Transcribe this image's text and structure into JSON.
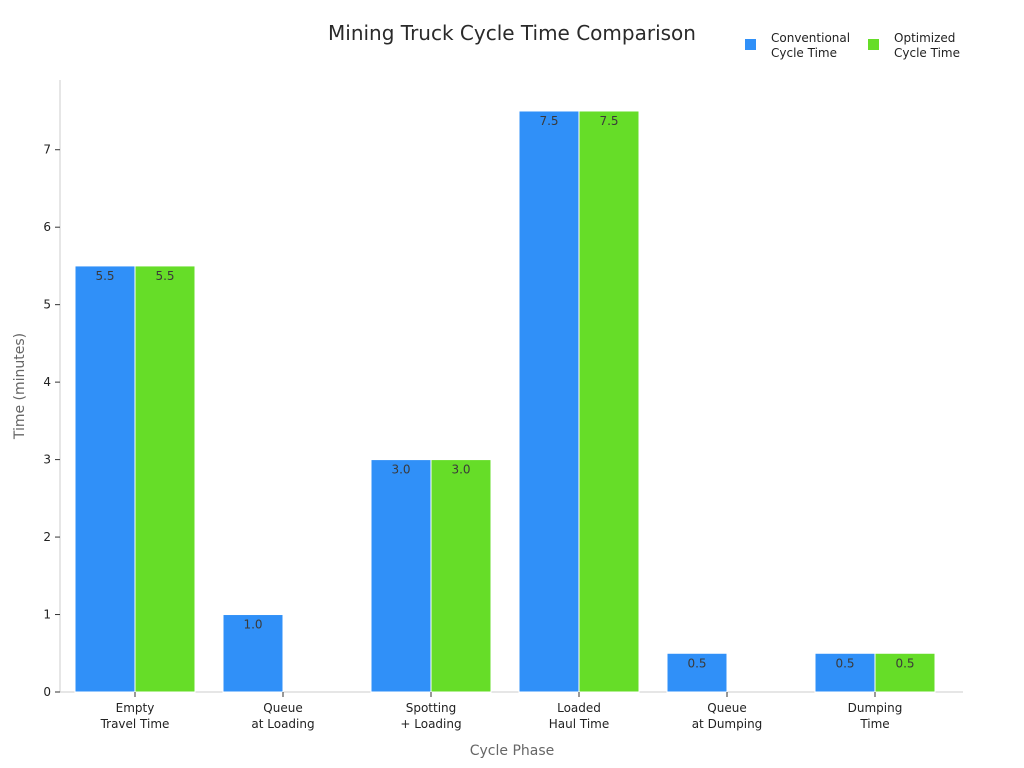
{
  "chart_data": {
    "type": "bar",
    "title": "Mining Truck Cycle Time Comparison",
    "xlabel": "Cycle Phase",
    "ylabel": "Time (minutes)",
    "ylim": [
      0,
      7.9
    ],
    "yticks": [
      0,
      1,
      2,
      3,
      4,
      5,
      6,
      7
    ],
    "grid": false,
    "legend_position": "top-right",
    "categories": [
      [
        "Empty",
        "Travel Time"
      ],
      [
        "Queue",
        "at Loading"
      ],
      [
        "Spotting",
        "+ Loading"
      ],
      [
        "Loaded",
        "Haul Time"
      ],
      [
        "Queue",
        "at Dumping"
      ],
      [
        "Dumping",
        "Time"
      ]
    ],
    "series": [
      {
        "name": [
          "Conventional",
          "Cycle Time"
        ],
        "color": "#3090f8",
        "values": [
          5.5,
          1.0,
          3.0,
          7.5,
          0.5,
          0.5
        ],
        "labels": [
          "5.5",
          "1.0",
          "3.0",
          "7.5",
          "0.5",
          "0.5"
        ]
      },
      {
        "name": [
          "Optimized",
          "Cycle Time"
        ],
        "color": "#66dd28",
        "values": [
          5.5,
          0,
          3.0,
          7.5,
          0,
          0.5
        ],
        "labels": [
          "5.5",
          "",
          "3.0",
          "7.5",
          "",
          "0.5"
        ]
      }
    ]
  }
}
